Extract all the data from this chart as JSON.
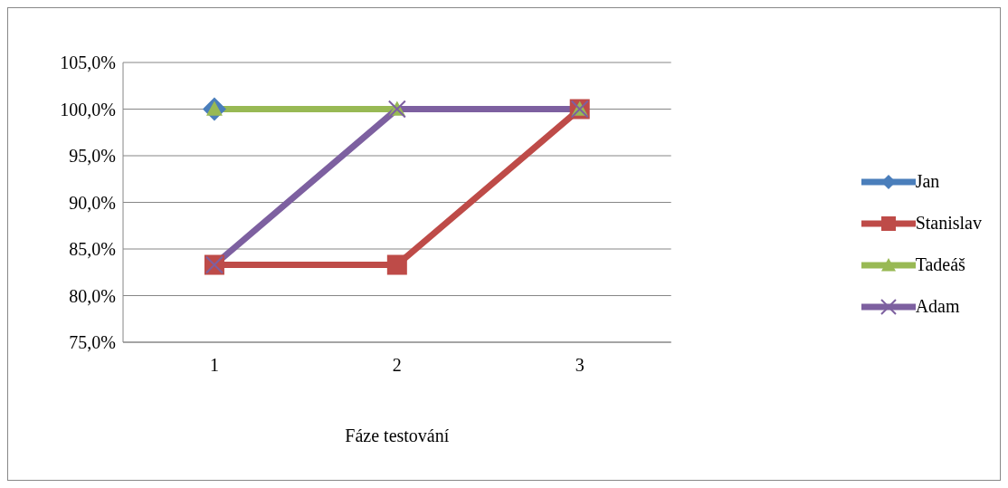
{
  "chart_data": {
    "type": "line",
    "xlabel": "Fáze testování",
    "categories": [
      "1",
      "2",
      "3"
    ],
    "series": [
      {
        "name": "Jan",
        "color": "#4a7ebb",
        "marker": "diamond",
        "values": [
          100,
          null,
          null
        ]
      },
      {
        "name": "Stanislav",
        "color": "#be4b48",
        "marker": "square",
        "values": [
          83.3,
          83.3,
          100
        ]
      },
      {
        "name": "Tadeáš",
        "color": "#98b954",
        "marker": "triangle",
        "values": [
          100,
          100,
          100
        ]
      },
      {
        "name": "Adam",
        "color": "#7d60a0",
        "marker": "cross",
        "values": [
          83.3,
          100,
          100
        ]
      }
    ],
    "ylim": [
      75,
      105
    ],
    "yticks": [
      {
        "value": 75,
        "label": "75,0%"
      },
      {
        "value": 80,
        "label": "80,0%"
      },
      {
        "value": 85,
        "label": "85,0%"
      },
      {
        "value": 90,
        "label": "90,0%"
      },
      {
        "value": 95,
        "label": "95,0%"
      },
      {
        "value": 100,
        "label": "100,0%"
      },
      {
        "value": 105,
        "label": "105,0%"
      }
    ],
    "grid": "y",
    "legend": "right",
    "line_style": "solid"
  }
}
